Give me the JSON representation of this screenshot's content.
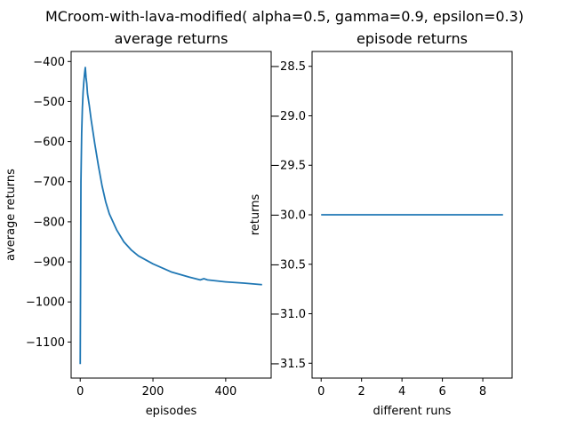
{
  "figure": {
    "suptitle": "MCroom-with-lava-modified( alpha=0.5, gamma=0.9, epsilon=0.3)"
  },
  "chart_data": [
    {
      "type": "line",
      "title": "average returns",
      "xlabel": "episodes",
      "ylabel": "average returns",
      "xlim": [
        -25,
        525
      ],
      "ylim": [
        -1190,
        -375
      ],
      "xticks": [
        0,
        200,
        400
      ],
      "yticks": [
        -1100,
        -1000,
        -900,
        -800,
        -700,
        -600,
        -500,
        -400
      ],
      "ytick_labels": [
        "−1100",
        "−1000",
        "−900",
        "−800",
        "−700",
        "−600",
        "−500",
        "−400"
      ],
      "grid": false,
      "color": "#1f77b4",
      "x": [
        0,
        2,
        4,
        6,
        8,
        10,
        12,
        14,
        16,
        18,
        20,
        25,
        30,
        35,
        40,
        50,
        60,
        70,
        80,
        90,
        100,
        120,
        140,
        160,
        180,
        200,
        250,
        300,
        330,
        340,
        350,
        400,
        450,
        500
      ],
      "y": [
        -1155,
        -700,
        -580,
        -515,
        -475,
        -450,
        -430,
        -415,
        -440,
        -455,
        -480,
        -510,
        -545,
        -575,
        -605,
        -660,
        -710,
        -750,
        -780,
        -800,
        -820,
        -850,
        -870,
        -885,
        -895,
        -905,
        -925,
        -938,
        -945,
        -942,
        -945,
        -950,
        -953,
        -957
      ]
    },
    {
      "type": "line",
      "title": "episode returns",
      "xlabel": "different runs",
      "ylabel": "returns",
      "xlim": [
        -0.45,
        9.45
      ],
      "ylim": [
        -31.65,
        -28.35
      ],
      "xticks": [
        0,
        2,
        4,
        6,
        8
      ],
      "yticks": [
        -31.5,
        -31.0,
        -30.5,
        -30.0,
        -29.5,
        -29.0,
        -28.5
      ],
      "ytick_labels": [
        "−31.5",
        "−31.0",
        "−30.5",
        "−30.0",
        "−29.5",
        "−29.0",
        "−28.5"
      ],
      "grid": false,
      "color": "#1f77b4",
      "x": [
        0,
        1,
        2,
        3,
        4,
        5,
        6,
        7,
        8,
        9
      ],
      "y": [
        -30,
        -30,
        -30,
        -30,
        -30,
        -30,
        -30,
        -30,
        -30,
        -30
      ]
    }
  ]
}
